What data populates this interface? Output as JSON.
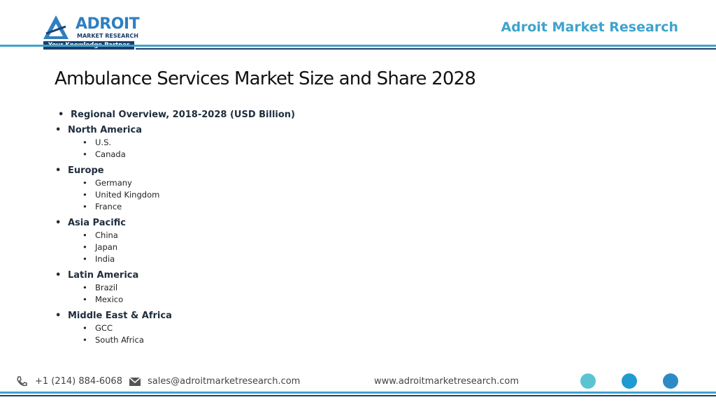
{
  "header": {
    "logo_name": "ADROIT",
    "logo_sub": "MARKET RESEARCH",
    "logo_tagline": "Your Knowledge Partner",
    "brand": "Adroit Market Research"
  },
  "title": "Ambulance Services Market Size and Share 2028",
  "intro": "Regional Overview, 2018-2028 (USD Billion)",
  "regions": [
    {
      "name": "North America",
      "items": [
        "U.S.",
        "Canada"
      ]
    },
    {
      "name": "Europe",
      "items": [
        "Germany",
        "United Kingdom",
        "France"
      ]
    },
    {
      "name": "Asia Pacific",
      "items": [
        "China",
        "Japan",
        "India"
      ]
    },
    {
      "name": "Latin America",
      "items": [
        "Brazil",
        "Mexico"
      ]
    },
    {
      "name": "Middle East & Africa",
      "items": [
        "GCC",
        "South Africa"
      ]
    }
  ],
  "footer": {
    "phone": "+1 (214) 884-6068",
    "email": "sales@adroitmarketresearch.com",
    "website": "www.adroitmarketresearch.com"
  }
}
